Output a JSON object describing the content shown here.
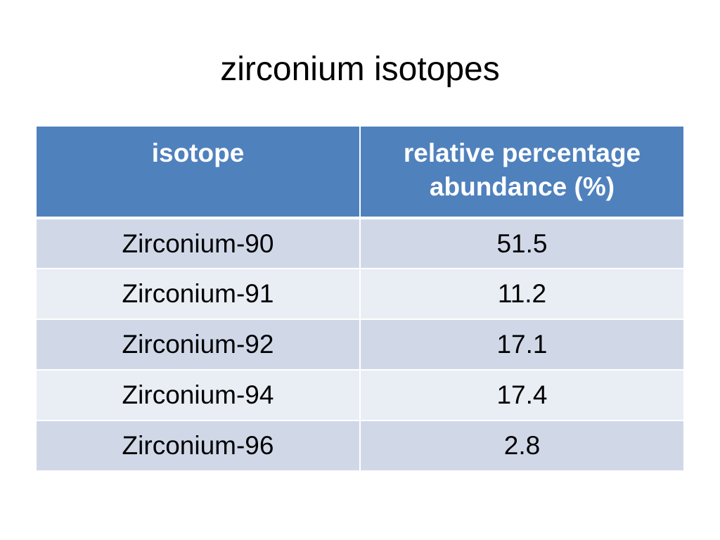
{
  "slide": {
    "title": "zirconium isotopes"
  },
  "table": {
    "headers": [
      "isotope",
      "relative percentage abundance (%)"
    ],
    "rows": [
      {
        "isotope": "Zirconium-90",
        "abundance": "51.5"
      },
      {
        "isotope": "Zirconium-91",
        "abundance": "11.2"
      },
      {
        "isotope": "Zirconium-92",
        "abundance": "17.1"
      },
      {
        "isotope": "Zirconium-94",
        "abundance": "17.4"
      },
      {
        "isotope": "Zirconium-96",
        "abundance": "2.8"
      }
    ]
  },
  "colors": {
    "header_bg": "#4f81bd",
    "row_odd_bg": "#d0d8e8",
    "row_even_bg": "#e9edf4"
  }
}
